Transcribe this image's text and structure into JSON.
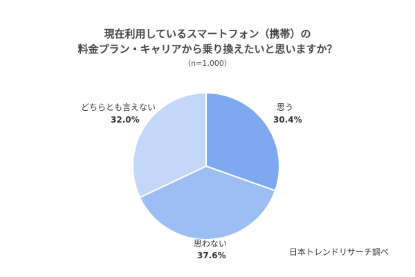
{
  "chart_data": {
    "type": "pie",
    "title_lines": [
      "現在利用しているスマートフォン（携帯）の",
      "料金プラン・キャリアから乗り換えたいと思いますか？"
    ],
    "note": "（n=1,000）",
    "source": "日本トレンドリサーチ調べ",
    "slices": [
      {
        "label": "思う",
        "value": 30.4,
        "value_label": "30.4%",
        "color": "#7ea9f0"
      },
      {
        "label": "思わない",
        "value": 37.6,
        "value_label": "37.6%",
        "color": "#9dbdf5"
      },
      {
        "label": "どちらとも言えない",
        "value": 32.0,
        "value_label": "32.0%",
        "color": "#c3d8f8"
      }
    ]
  }
}
